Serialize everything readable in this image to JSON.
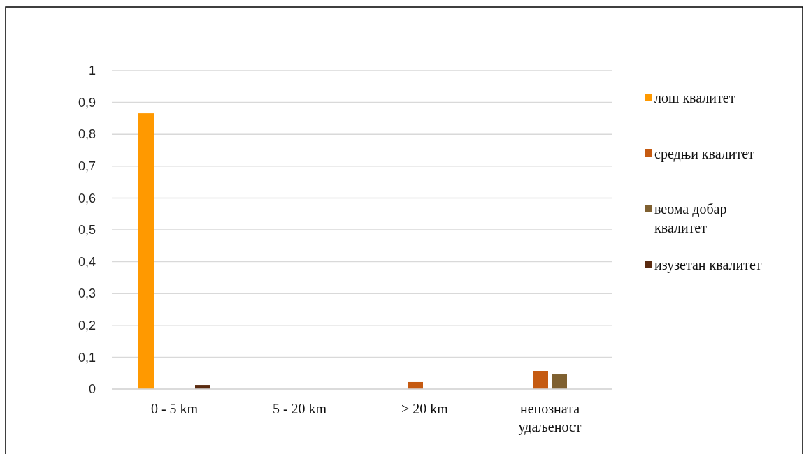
{
  "chart_data": {
    "type": "bar",
    "categories": [
      "0 - 5 km",
      "5 - 20 km",
      "> 20 km",
      "непозната удаљеност"
    ],
    "series": [
      {
        "name": "лош квалитет",
        "color": "#ff9900",
        "values": [
          0.866,
          0,
          0,
          0
        ]
      },
      {
        "name": "средњи квалитет",
        "color": "#c55a11",
        "values": [
          0,
          0,
          0.022,
          0.057
        ]
      },
      {
        "name": "веома добар квалитет",
        "color": "#7f6030",
        "values": [
          0,
          0,
          0,
          0.046
        ]
      },
      {
        "name": "изузетан квалитет",
        "color": "#5a2b10",
        "values": [
          0.013,
          0,
          0,
          0
        ]
      }
    ],
    "ylim": [
      0,
      1
    ],
    "yticks": [
      {
        "value": 0,
        "label": "0"
      },
      {
        "value": 0.1,
        "label": "0,1"
      },
      {
        "value": 0.2,
        "label": "0,2"
      },
      {
        "value": 0.3,
        "label": "0,3"
      },
      {
        "value": 0.4,
        "label": "0,4"
      },
      {
        "value": 0.5,
        "label": "0,5"
      },
      {
        "value": 0.6,
        "label": "0,6"
      },
      {
        "value": 0.7,
        "label": "0,7"
      },
      {
        "value": 0.8,
        "label": "0,8"
      },
      {
        "value": 0.9,
        "label": "0,9"
      },
      {
        "value": 1,
        "label": "1"
      }
    ],
    "grid": "y",
    "legend": "right"
  }
}
